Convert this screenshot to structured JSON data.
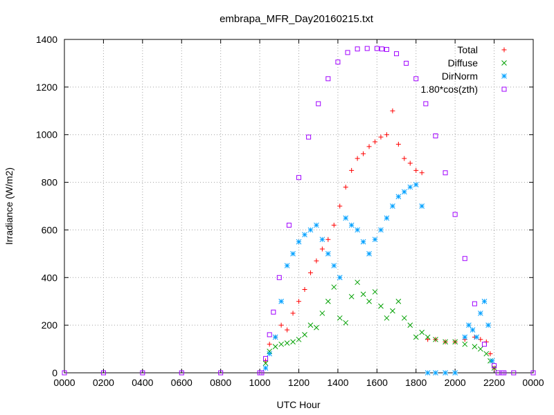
{
  "chart_data": {
    "type": "scatter",
    "title": "embrapa_MFR_Day20160215.txt",
    "xlabel": "UTC Hour",
    "ylabel": "Irradiance (W/m2)",
    "xlim": [
      0,
      2400
    ],
    "ylim": [
      0,
      1400
    ],
    "x_ticks": [
      "0000",
      "0200",
      "0400",
      "0600",
      "0800",
      "1000",
      "1200",
      "1400",
      "1600",
      "1800",
      "2000",
      "2200",
      "0000"
    ],
    "y_ticks": [
      "0",
      "200",
      "400",
      "600",
      "800",
      "1000",
      "1200",
      "1400"
    ],
    "grid": true,
    "legend_position": "top-right",
    "series": [
      {
        "name": "Total",
        "color": "#ff0000",
        "marker": "plus",
        "x": [
          1030,
          1050,
          1080,
          1110,
          1140,
          1170,
          1200,
          1230,
          1260,
          1290,
          1320,
          1350,
          1380,
          1410,
          1440,
          1470,
          1500,
          1530,
          1560,
          1590,
          1620,
          1650,
          1680,
          1710,
          1740,
          1770,
          1800,
          1830,
          1860,
          1900,
          1950,
          2000,
          2050,
          2100,
          2130,
          2160,
          2180,
          2200
        ],
        "y": [
          50,
          120,
          150,
          200,
          180,
          250,
          300,
          350,
          420,
          470,
          520,
          560,
          620,
          700,
          780,
          850,
          900,
          920,
          950,
          970,
          990,
          1000,
          1100,
          960,
          900,
          880,
          850,
          840,
          140,
          140,
          130,
          130,
          140,
          150,
          140,
          130,
          80,
          20
        ]
      },
      {
        "name": "Diffuse",
        "color": "#00a000",
        "marker": "cross",
        "x": [
          1030,
          1050,
          1080,
          1110,
          1140,
          1170,
          1200,
          1230,
          1260,
          1290,
          1320,
          1350,
          1380,
          1410,
          1440,
          1470,
          1500,
          1530,
          1560,
          1590,
          1620,
          1650,
          1680,
          1710,
          1740,
          1770,
          1800,
          1830,
          1860,
          1900,
          1950,
          2000,
          2050,
          2100,
          2130,
          2160,
          2180,
          2200
        ],
        "y": [
          40,
          90,
          110,
          120,
          125,
          130,
          140,
          160,
          200,
          190,
          250,
          300,
          360,
          230,
          210,
          320,
          380,
          330,
          300,
          340,
          280,
          230,
          260,
          300,
          230,
          200,
          150,
          170,
          150,
          140,
          130,
          130,
          120,
          110,
          100,
          80,
          50,
          20
        ]
      },
      {
        "name": "DirNorm",
        "color": "#00a0ff",
        "marker": "star",
        "x": [
          1030,
          1050,
          1080,
          1110,
          1140,
          1170,
          1200,
          1230,
          1260,
          1290,
          1320,
          1350,
          1380,
          1410,
          1440,
          1470,
          1500,
          1530,
          1560,
          1590,
          1620,
          1650,
          1680,
          1710,
          1740,
          1770,
          1800,
          1830,
          1860,
          1900,
          1950,
          2000,
          2050,
          2070,
          2090,
          2110,
          2130,
          2150,
          2170,
          2190
        ],
        "y": [
          20,
          80,
          150,
          300,
          450,
          500,
          550,
          580,
          600,
          620,
          560,
          500,
          450,
          400,
          650,
          620,
          600,
          550,
          500,
          560,
          600,
          650,
          700,
          740,
          760,
          780,
          790,
          700,
          0,
          0,
          0,
          0,
          150,
          200,
          180,
          150,
          250,
          300,
          200,
          50
        ]
      },
      {
        "name": "1.80*cos(zth)",
        "color": "#a000ff",
        "marker": "square",
        "x": [
          0,
          200,
          400,
          600,
          800,
          1000,
          1010,
          1030,
          1050,
          1070,
          1100,
          1150,
          1200,
          1250,
          1300,
          1350,
          1400,
          1450,
          1500,
          1550,
          1600,
          1625,
          1650,
          1700,
          1750,
          1800,
          1850,
          1900,
          1950,
          2000,
          2050,
          2100,
          2150,
          2200,
          2220,
          2240,
          2250,
          2300,
          2400
        ],
        "y": [
          0,
          0,
          0,
          0,
          0,
          0,
          0,
          60,
          160,
          255,
          400,
          620,
          820,
          990,
          1130,
          1235,
          1305,
          1345,
          1360,
          1362,
          1362,
          1360,
          1358,
          1340,
          1300,
          1235,
          1130,
          995,
          840,
          665,
          480,
          290,
          120,
          30,
          0,
          0,
          0,
          0,
          0
        ]
      }
    ]
  }
}
